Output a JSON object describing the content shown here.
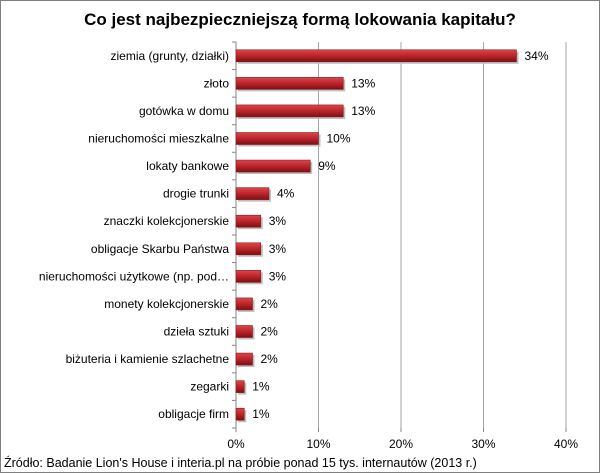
{
  "chart_data": {
    "type": "bar",
    "orientation": "horizontal",
    "title": "Co jest najbezpieczniejszą formą lokowania kapitału?",
    "categories": [
      "ziemia (grunty, działki)",
      "złoto",
      "gotówka w domu",
      "nieruchomości mieszkalne",
      "lokaty bankowe",
      "drogie trunki",
      "znaczki kolekcjonerskie",
      "obligacje Skarbu Państwa",
      "nieruchomości użytkowe (np. pod…",
      "monety kolekcjonerskie",
      "dzieła sztuki",
      "biżuteria i kamienie szlachetne",
      "zegarki",
      "obligacje firm"
    ],
    "values": [
      34,
      13,
      13,
      10,
      9,
      4,
      3,
      3,
      3,
      2,
      2,
      2,
      1,
      1
    ],
    "value_labels": [
      "34%",
      "13%",
      "13%",
      "10%",
      "9%",
      "4%",
      "3%",
      "3%",
      "3%",
      "2%",
      "2%",
      "2%",
      "1%",
      "1%"
    ],
    "xlim": [
      0,
      40
    ],
    "x_ticks": [
      0,
      10,
      20,
      30,
      40
    ],
    "x_tick_labels": [
      "0%",
      "10%",
      "20%",
      "30%",
      "40%"
    ],
    "bar_color": "#c0272d",
    "bar_dark_color": "#7a1014",
    "grid": true,
    "source": "Źródło: Badanie Lion's House i interia.pl na próbie ponad 15 tys. internautów (2013 r.)"
  }
}
